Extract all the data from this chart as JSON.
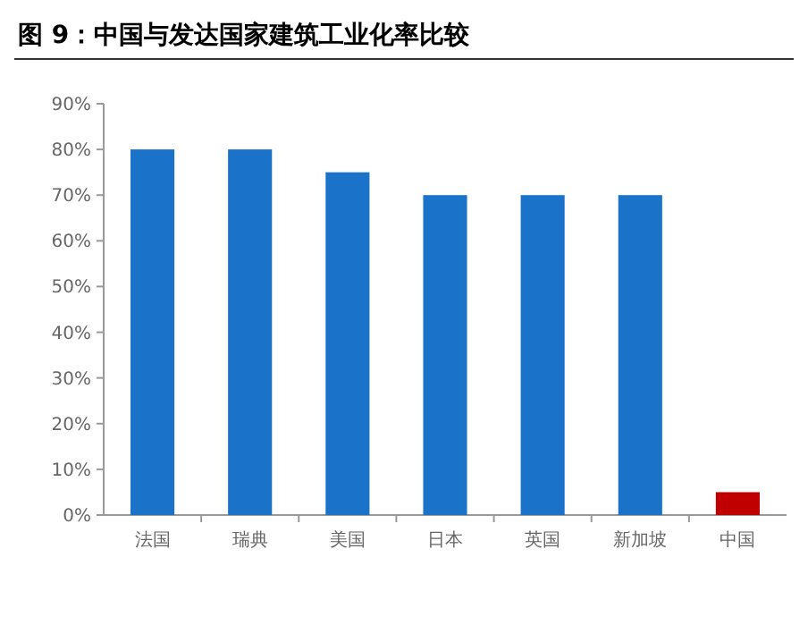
{
  "chart_data": {
    "type": "bar",
    "title": "图 9：中国与发达国家建筑工业化率比较",
    "categories": [
      "法国",
      "瑞典",
      "美国",
      "日本",
      "英国",
      "新加坡",
      "中国"
    ],
    "values": [
      80,
      80,
      75,
      70,
      70,
      70,
      5
    ],
    "colors": [
      "#1a72c9",
      "#1a72c9",
      "#1a72c9",
      "#1a72c9",
      "#1a72c9",
      "#1a72c9",
      "#c00000"
    ],
    "ylim": [
      0,
      90
    ],
    "yticks": [
      {
        "value": 0,
        "label": "0%"
      },
      {
        "value": 10,
        "label": "10%"
      },
      {
        "value": 20,
        "label": "20%"
      },
      {
        "value": 30,
        "label": "30%"
      },
      {
        "value": 40,
        "label": "40%"
      },
      {
        "value": 50,
        "label": "50%"
      },
      {
        "value": 60,
        "label": "60%"
      },
      {
        "value": 70,
        "label": "70%"
      },
      {
        "value": 80,
        "label": "80%"
      },
      {
        "value": 90,
        "label": "90%"
      }
    ],
    "orientation": "vertical"
  }
}
